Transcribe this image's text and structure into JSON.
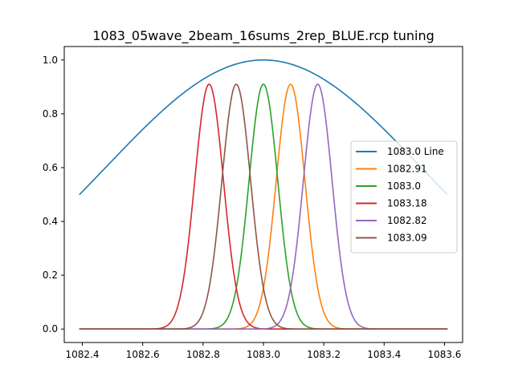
{
  "chart_data": {
    "type": "line",
    "title": "1083_05wave_2beam_16sums_2rep_BLUE.rcp tuning",
    "xlabel": "",
    "ylabel": "",
    "xlim": [
      1082.34,
      1083.66
    ],
    "ylim": [
      -0.05,
      1.05
    ],
    "x_ticks": [
      "1082.4",
      "1082.6",
      "1082.8",
      "1083.0",
      "1083.2",
      "1083.4",
      "1083.6"
    ],
    "y_ticks": [
      "0.0",
      "0.2",
      "0.4",
      "0.6",
      "0.8",
      "1.0"
    ],
    "grid": false,
    "legend_position": "center-right",
    "x_range": [
      1082.39,
      1083.61
    ],
    "series": [
      {
        "name": "1083.0 Line",
        "color": "#1f77b4",
        "shape": "gaussian",
        "center": 1083.0,
        "peak": 1.0,
        "sigma": 0.5176
      },
      {
        "name": "1082.91",
        "color": "#ff7f0e",
        "shape": "gaussian",
        "center": 1083.09,
        "peak": 0.91,
        "sigma": 0.0476
      },
      {
        "name": "1083.0",
        "color": "#2ca02c",
        "shape": "gaussian",
        "center": 1083.0,
        "peak": 0.91,
        "sigma": 0.0476
      },
      {
        "name": "1083.18",
        "color": "#d62728",
        "shape": "gaussian",
        "center": 1082.82,
        "peak": 0.91,
        "sigma": 0.0476
      },
      {
        "name": "1082.82",
        "color": "#9467bd",
        "shape": "gaussian",
        "center": 1083.18,
        "peak": 0.91,
        "sigma": 0.0476
      },
      {
        "name": "1083.09",
        "color": "#8c564b",
        "shape": "gaussian",
        "center": 1082.91,
        "peak": 0.91,
        "sigma": 0.0476
      }
    ]
  }
}
